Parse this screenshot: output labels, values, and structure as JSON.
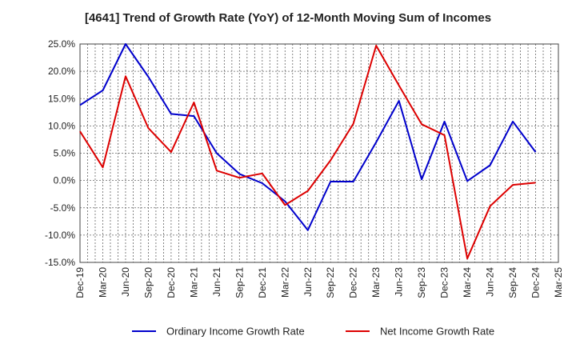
{
  "chart_data": {
    "type": "line",
    "title": "[4641]  Trend of Growth Rate (YoY) of 12-Month Moving Sum of Incomes",
    "categories": [
      "Dec-19",
      "Mar-20",
      "Jun-20",
      "Sep-20",
      "Dec-20",
      "Mar-21",
      "Jun-21",
      "Sep-21",
      "Dec-21",
      "Mar-22",
      "Jun-22",
      "Sep-22",
      "Dec-22",
      "Mar-23",
      "Jun-23",
      "Sep-23",
      "Dec-23",
      "Mar-24",
      "Jun-24",
      "Sep-24",
      "Dec-24",
      "Mar-25"
    ],
    "yticks": [
      "-15.0%",
      "-10.0%",
      "-5.0%",
      "0.0%",
      "5.0%",
      "10.0%",
      "15.0%",
      "20.0%",
      "25.0%"
    ],
    "ylim": [
      -15,
      25
    ],
    "grid": true,
    "legend_position": "bottom",
    "series": [
      {
        "name": "Ordinary Income Growth Rate",
        "color": "#0000cc",
        "values": [
          13.8,
          16.5,
          25.0,
          19.0,
          12.2,
          11.8,
          5.0,
          1.2,
          -0.5,
          -3.8,
          -9.1,
          -0.2,
          -0.2,
          7.0,
          14.6,
          0.2,
          10.8,
          -0.1,
          2.8,
          10.8,
          5.2,
          null
        ]
      },
      {
        "name": "Net Income Growth Rate",
        "color": "#dd0000",
        "values": [
          9.0,
          2.4,
          19.1,
          9.6,
          5.2,
          14.3,
          1.8,
          0.5,
          1.3,
          -4.5,
          -1.9,
          3.7,
          10.4,
          24.7,
          17.4,
          10.3,
          8.3,
          -14.3,
          -4.7,
          -0.8,
          -0.4,
          null
        ]
      }
    ]
  }
}
